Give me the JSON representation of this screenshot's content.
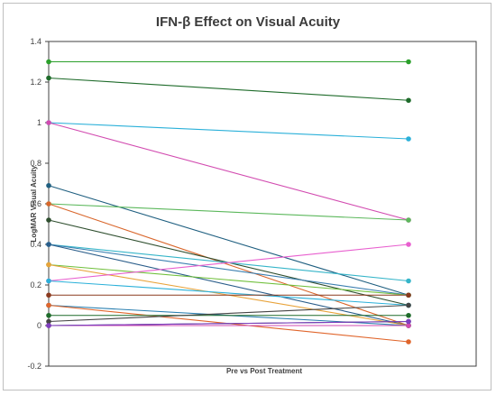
{
  "chart_data": {
    "type": "line",
    "title": "IFN-β Effect on Visual Acuity",
    "xlabel": "Pre vs Post Treatment",
    "ylabel": "LogMAR Visual Acuity",
    "x": [
      "Pre",
      "Post"
    ],
    "ylim": [
      -0.2,
      1.4
    ],
    "yticks": [
      -0.2,
      0,
      0.2,
      0.4,
      0.6,
      0.8,
      1,
      1.2,
      1.4
    ],
    "ytick_labels": [
      "-0.2",
      "0",
      "0.2",
      "0.4",
      "0.6",
      "0.8",
      "1",
      "1.2",
      "1.4"
    ],
    "grid": false,
    "legend": "none",
    "series": [
      {
        "values": [
          1.3,
          1.3
        ],
        "color": "#2ca02c"
      },
      {
        "values": [
          1.22,
          1.11
        ],
        "color": "#1e6b2a"
      },
      {
        "values": [
          1.0,
          0.92
        ],
        "color": "#2ab0d9"
      },
      {
        "values": [
          1.0,
          0.52
        ],
        "color": "#d24bb0"
      },
      {
        "values": [
          0.69,
          0.15
        ],
        "color": "#1f5f80"
      },
      {
        "values": [
          0.6,
          0.52
        ],
        "color": "#5cb85c"
      },
      {
        "values": [
          0.6,
          0.0
        ],
        "color": "#d9662b"
      },
      {
        "values": [
          0.52,
          0.1
        ],
        "color": "#2f4f2f"
      },
      {
        "values": [
          0.4,
          0.22
        ],
        "color": "#35b5c9"
      },
      {
        "values": [
          0.4,
          0.15
        ],
        "color": "#3b7fb0"
      },
      {
        "values": [
          0.4,
          0.0
        ],
        "color": "#2a5d8a"
      },
      {
        "values": [
          0.3,
          0.15
        ],
        "color": "#6fbf3a"
      },
      {
        "values": [
          0.3,
          0.0
        ],
        "color": "#e8a33a"
      },
      {
        "values": [
          0.22,
          0.4
        ],
        "color": "#e85fcf"
      },
      {
        "values": [
          0.22,
          0.1
        ],
        "color": "#2ab0d9"
      },
      {
        "values": [
          0.15,
          0.15
        ],
        "color": "#8b3a1e"
      },
      {
        "values": [
          0.1,
          0.0
        ],
        "color": "#2a7fb0"
      },
      {
        "values": [
          0.1,
          -0.08
        ],
        "color": "#e0652b"
      },
      {
        "values": [
          0.05,
          0.05
        ],
        "color": "#1e6b2a"
      },
      {
        "values": [
          0.02,
          0.1
        ],
        "color": "#444444"
      },
      {
        "values": [
          0.0,
          0.02
        ],
        "color": "#1e3f5a"
      },
      {
        "values": [
          0.0,
          0.0
        ],
        "color": "#d24bb0"
      },
      {
        "values": [
          0.0,
          0.02
        ],
        "color": "#7f3fbf"
      }
    ]
  }
}
